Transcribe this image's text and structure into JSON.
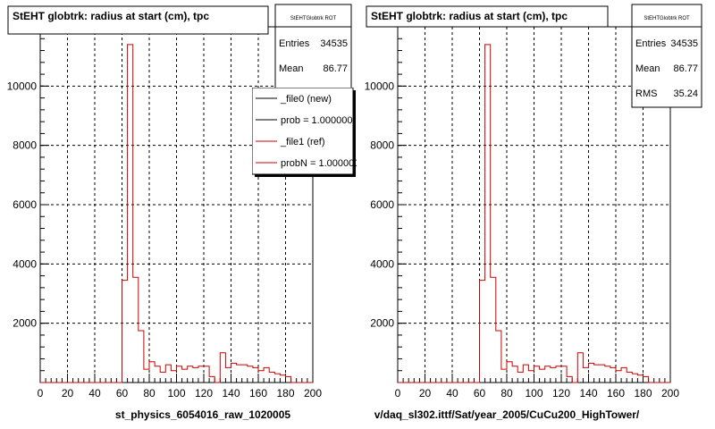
{
  "panels": [
    {
      "title": "StEHT globtrk: radius at start (cm), tpc",
      "stats": {
        "name": "StEHTGlobtrk ROT",
        "rows": [
          {
            "label": "Entries",
            "value": "34535"
          },
          {
            "label": "Mean",
            "value": "86.77"
          }
        ]
      },
      "legend": [
        {
          "label": "_file0 (new)",
          "color": "#000000"
        },
        {
          "label": "prob = 1.000000",
          "color": "#000000"
        },
        {
          "label": "_file1 (ref)",
          "color": "#cc0000"
        },
        {
          "label": "probN = 1.000000",
          "color": "#cc0000"
        }
      ],
      "footer": "st_physics_6054016_raw_1020005"
    },
    {
      "title": "StEHT globtrk: radius at start (cm), tpc",
      "stats": {
        "name": "StEHTGlobtrk ROT",
        "rows": [
          {
            "label": "Entries",
            "value": "34535"
          },
          {
            "label": "Mean",
            "value": "86.77"
          },
          {
            "label": "RMS",
            "value": "35.24"
          }
        ]
      },
      "legend": [],
      "footer": "v/daq_sl302.ittf/Sat/year_2005/CuCu200_HighTower/"
    }
  ],
  "colors": {
    "hist": "#cc0000",
    "grid": "#000000",
    "axis": "#000000"
  },
  "chart_data": [
    {
      "type": "bar",
      "histogram": true,
      "title": "StEHT globtrk: radius at start (cm), tpc",
      "xlabel": "",
      "ylabel": "",
      "xlim": [
        0,
        200
      ],
      "ylim": [
        0,
        12000
      ],
      "xticks": [
        0,
        20,
        40,
        60,
        80,
        100,
        120,
        140,
        160,
        180,
        200
      ],
      "yticks": [
        2000,
        4000,
        6000,
        8000,
        10000
      ],
      "grid": true,
      "legend_position": "top-right",
      "bin_width": 4,
      "x_start": 0,
      "series": [
        {
          "name": "_file1 (ref)",
          "color": "#cc0000",
          "values": [
            0,
            0,
            0,
            0,
            0,
            0,
            0,
            0,
            0,
            0,
            0,
            0,
            0,
            0,
            0,
            3450,
            11400,
            3550,
            1750,
            450,
            700,
            550,
            350,
            600,
            400,
            550,
            450,
            550,
            500,
            550,
            550,
            200,
            0,
            1000,
            500,
            650,
            600,
            600,
            550,
            500,
            400,
            500,
            350,
            300,
            250,
            200,
            0,
            0,
            0,
            0
          ]
        }
      ]
    },
    {
      "type": "bar",
      "histogram": true,
      "title": "StEHT globtrk: radius at start (cm), tpc",
      "xlabel": "",
      "ylabel": "",
      "xlim": [
        0,
        200
      ],
      "ylim": [
        0,
        12000
      ],
      "xticks": [
        0,
        20,
        40,
        60,
        80,
        100,
        120,
        140,
        160,
        180,
        200
      ],
      "yticks": [
        2000,
        4000,
        6000,
        8000,
        10000
      ],
      "grid": true,
      "bin_width": 4,
      "x_start": 0,
      "series": [
        {
          "name": "",
          "color": "#cc0000",
          "values": [
            0,
            0,
            0,
            0,
            0,
            0,
            0,
            0,
            0,
            0,
            0,
            0,
            0,
            0,
            0,
            3450,
            11400,
            3550,
            1750,
            450,
            700,
            550,
            350,
            600,
            400,
            550,
            450,
            550,
            500,
            550,
            550,
            200,
            0,
            1000,
            500,
            650,
            600,
            600,
            550,
            500,
            400,
            500,
            350,
            300,
            250,
            200,
            0,
            0,
            0,
            0
          ]
        }
      ]
    }
  ]
}
